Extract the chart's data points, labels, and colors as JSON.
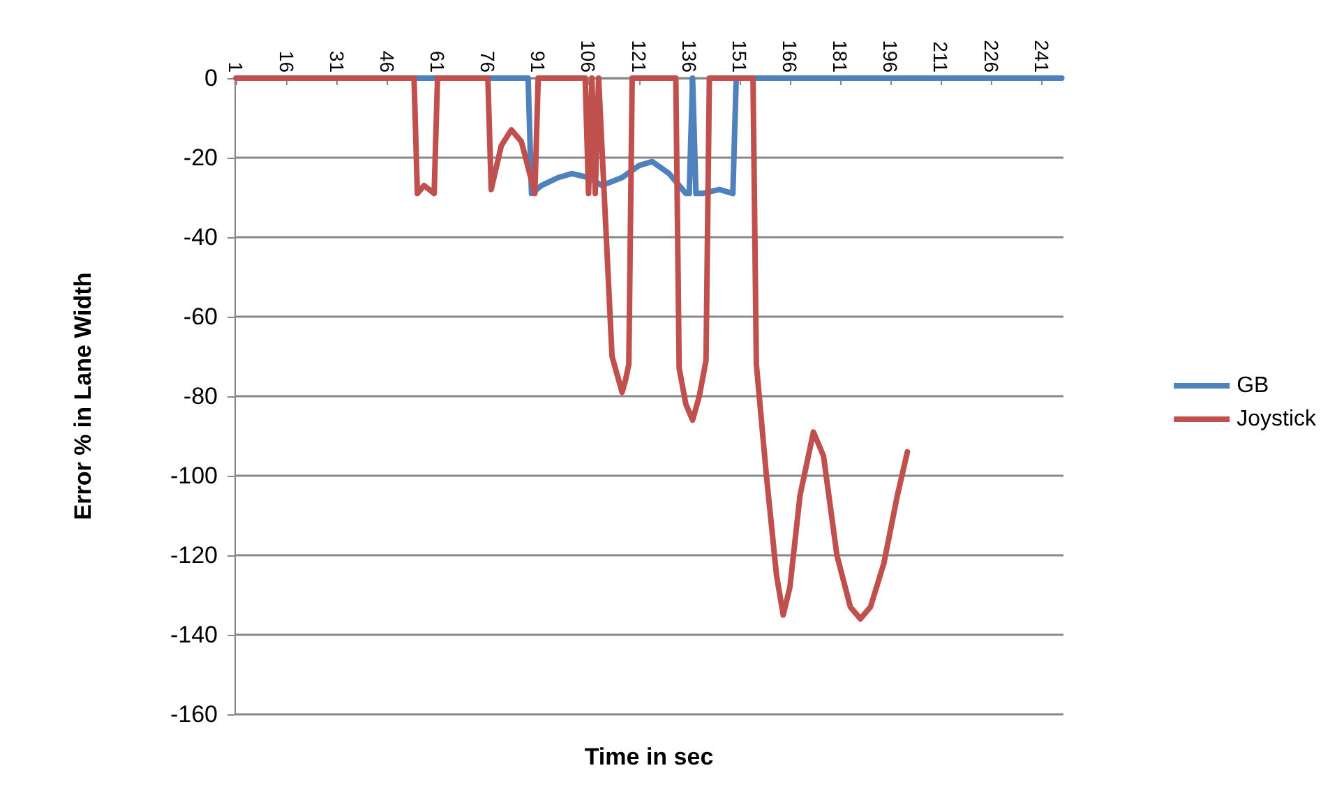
{
  "chart_data": {
    "type": "line",
    "xlabel": "Time in sec",
    "ylabel": "Error % in Lane Width",
    "xlim": [
      0.5,
      247.5
    ],
    "xticks": [
      1,
      16,
      31,
      46,
      61,
      76,
      91,
      106,
      121,
      136,
      151,
      166,
      181,
      196,
      211,
      226,
      241
    ],
    "ylim": [
      -160,
      0
    ],
    "yticks": [
      -160,
      -140,
      -120,
      -100,
      -80,
      -60,
      -40,
      -20,
      0
    ],
    "grid": "y",
    "legend": "right",
    "marker": "none",
    "line_style": "solid",
    "series": [
      {
        "name": "GB",
        "color": "#4f81bd",
        "x": [
          1,
          88,
          89,
          92,
          97,
          101,
          106,
          110,
          116,
          121,
          125,
          130,
          135,
          136,
          137,
          138,
          140,
          145,
          149,
          150,
          247
        ],
        "values": [
          0,
          0,
          -29,
          -27,
          -25,
          -24,
          -25,
          -27,
          -25,
          -22,
          -21,
          -24,
          -29,
          -29,
          0,
          -29,
          -29,
          -28,
          -29,
          0,
          0
        ]
      },
      {
        "name": "Joystick",
        "color": "#c0504d",
        "x": [
          1,
          54,
          55,
          57,
          60,
          61,
          76,
          77,
          80,
          83,
          86,
          90,
          91,
          105,
          106,
          107,
          108,
          109,
          113,
          116,
          117,
          118,
          119,
          132,
          133,
          135,
          137,
          139,
          141,
          142,
          155,
          156,
          159,
          162,
          164,
          166,
          169,
          173,
          176,
          180,
          184,
          187,
          190,
          194,
          198,
          201
        ],
        "values": [
          0,
          0,
          -29,
          -27,
          -29,
          0,
          0,
          -28,
          -17,
          -13,
          -16,
          -29,
          0,
          0,
          -29,
          0,
          -29,
          0,
          -70,
          -79,
          -76,
          -72,
          0,
          0,
          -73,
          -82,
          -86,
          -80,
          -71,
          0,
          0,
          -72,
          -100,
          -125,
          -135,
          -128,
          -105,
          -89,
          -95,
          -120,
          -133,
          -136,
          -133,
          -122,
          -105,
          -94
        ]
      }
    ]
  }
}
